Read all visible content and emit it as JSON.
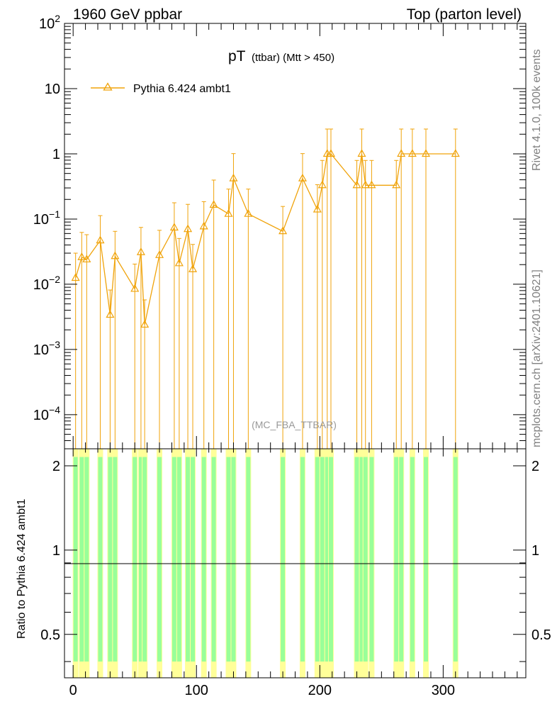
{
  "header": {
    "left": "1960 GeV ppbar",
    "right": "Top (parton level)"
  },
  "plot_title": {
    "main": "pT",
    "sub": "(ttbar) (Mtt > 450)"
  },
  "watermark": "(MC_FBA_TTBAR)",
  "side_labels": {
    "rivet": "Rivet 4.1.0,  100k events",
    "mcplots": "mcplots.cern.ch [arXiv:2401.10621]"
  },
  "ratio_ylabel": "Ratio to Pythia 6.424 ambt1",
  "colors": {
    "series": "#f0a30a",
    "band_green": "#99ff99",
    "band_yellow": "#ffff99"
  },
  "chart_data": {
    "type": "line",
    "series": [
      {
        "name": "Pythia 6.424 ambt1",
        "marker": "open-triangle",
        "points": [
          {
            "x": 2,
            "y": 0.0125
          },
          {
            "x": 7,
            "y": 0.026
          },
          {
            "x": 11,
            "y": 0.024
          },
          {
            "x": 22,
            "y": 0.047
          },
          {
            "x": 30,
            "y": 0.0034
          },
          {
            "x": 34,
            "y": 0.027
          },
          {
            "x": 50,
            "y": 0.0085
          },
          {
            "x": 55,
            "y": 0.031
          },
          {
            "x": 58,
            "y": 0.0024
          },
          {
            "x": 70,
            "y": 0.028
          },
          {
            "x": 82,
            "y": 0.074
          },
          {
            "x": 86,
            "y": 0.021
          },
          {
            "x": 93,
            "y": 0.07
          },
          {
            "x": 97,
            "y": 0.017
          },
          {
            "x": 106,
            "y": 0.077
          },
          {
            "x": 114,
            "y": 0.165
          },
          {
            "x": 126,
            "y": 0.12
          },
          {
            "x": 130,
            "y": 0.42
          },
          {
            "x": 142,
            "y": 0.12
          },
          {
            "x": 170,
            "y": 0.065
          },
          {
            "x": 186,
            "y": 0.42
          },
          {
            "x": 198,
            "y": 0.14
          },
          {
            "x": 202,
            "y": 0.33
          },
          {
            "x": 206,
            "y": 1.0
          },
          {
            "x": 209,
            "y": 1.0
          },
          {
            "x": 230,
            "y": 0.33
          },
          {
            "x": 234,
            "y": 1.0
          },
          {
            "x": 237,
            "y": 0.33
          },
          {
            "x": 242,
            "y": 0.33
          },
          {
            "x": 262,
            "y": 0.33
          },
          {
            "x": 266,
            "y": 1.0
          },
          {
            "x": 275,
            "y": 1.0
          },
          {
            "x": 286,
            "y": 1.0
          },
          {
            "x": 310,
            "y": 1.0
          }
        ]
      }
    ],
    "xlim": [
      -7,
      367
    ],
    "ylim": [
      3e-05,
      100
    ],
    "yscale": "log",
    "x_ticks": [
      "0",
      "100",
      "200",
      "300"
    ],
    "y_ticks": [
      {
        "mant": "10",
        "exp": "2"
      },
      {
        "mant": "10",
        "exp": ""
      },
      {
        "mant": "1",
        "exp": ""
      },
      {
        "mant": "10",
        "exp": "−1"
      },
      {
        "mant": "10",
        "exp": "−2"
      },
      {
        "mant": "10",
        "exp": "−3"
      },
      {
        "mant": "10",
        "exp": "−4"
      }
    ],
    "ratio": {
      "ylim": [
        0.35,
        2.3
      ],
      "y_ticks": [
        "0.5",
        "1",
        "2"
      ],
      "reference": 1
    },
    "legend_position": "top-left",
    "grid": false
  }
}
